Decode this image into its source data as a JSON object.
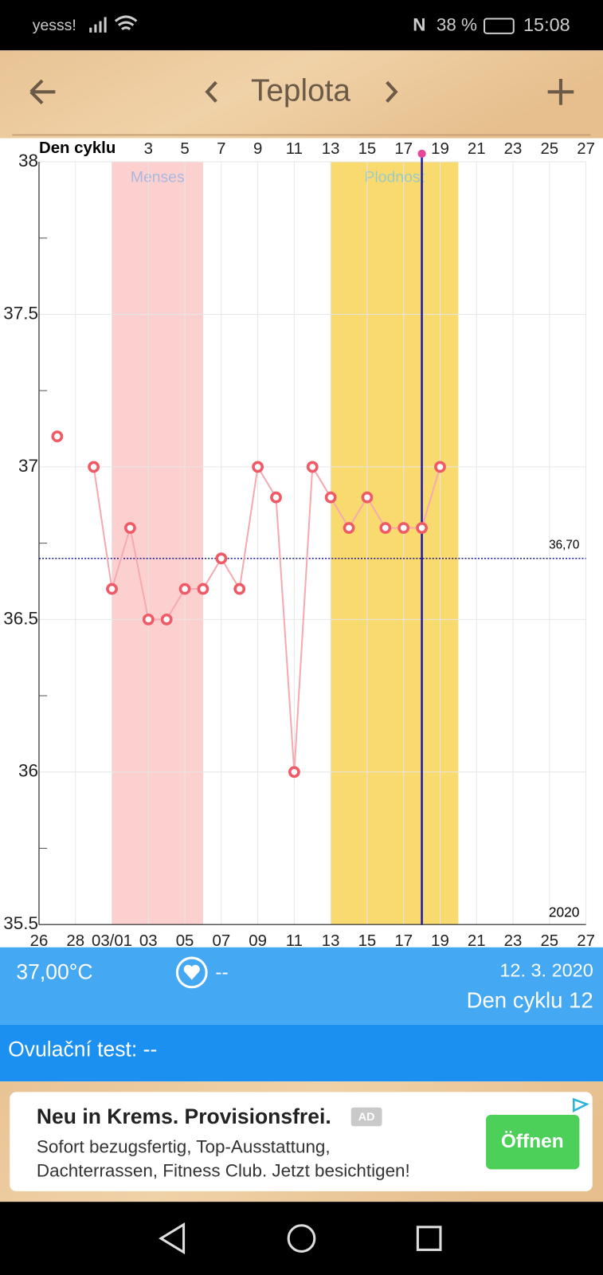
{
  "status_bar": {
    "carrier": "yesss!",
    "battery": "38 %",
    "time": "15:08"
  },
  "header": {
    "title": "Teplota"
  },
  "chart_data": {
    "type": "line",
    "top_axis_label": "Den cyklu",
    "categories": [
      "26",
      null,
      "28",
      null,
      "03/01",
      null,
      "03",
      null,
      "05",
      null,
      "07",
      null,
      "09",
      null,
      "11",
      null,
      "13",
      null,
      "15",
      null,
      "17",
      null,
      "19",
      null,
      "21",
      null,
      "23",
      null,
      "25",
      null,
      "27"
    ],
    "top_categories": [
      null,
      null,
      null,
      null,
      null,
      null,
      "3",
      null,
      "5",
      null,
      "7",
      null,
      "9",
      null,
      "11",
      null,
      "13",
      null,
      "15",
      null,
      "17",
      null,
      "19",
      null,
      "21",
      null,
      "23",
      null,
      "25",
      null,
      "27"
    ],
    "values": [
      null,
      37.1,
      null,
      37.0,
      36.6,
      36.8,
      36.5,
      36.5,
      36.6,
      36.6,
      36.7,
      36.6,
      37.0,
      36.9,
      36.0,
      37.0,
      36.9,
      36.8,
      36.9,
      36.8,
      36.8,
      36.8,
      37.0,
      null,
      null,
      null,
      null,
      null,
      null,
      null,
      null
    ],
    "color": "#ef5a66",
    "line_color": "#f6aab0",
    "ylim": [
      35.5,
      38
    ],
    "yticks": [
      35.5,
      36,
      36.5,
      37,
      37.5,
      38
    ],
    "minor_yticks": [
      35.75,
      36.25,
      36.75,
      37.25,
      37.75
    ],
    "grid": true,
    "reference_line": {
      "value": 36.7,
      "label": "36,70",
      "color": "#1a1a8c"
    },
    "year_label": "2020",
    "bands": [
      {
        "label": "Menses",
        "start": 4,
        "end": 9,
        "color": "#fdd0d0",
        "text_color": "#a9b8e0"
      },
      {
        "label": "Plodnost",
        "start": 16,
        "end": 23,
        "color": "#f9da6f",
        "text_color": "#9fc9c4"
      }
    ],
    "marker_line": {
      "index": 21,
      "color": "#1a1ab0"
    }
  },
  "info": {
    "temperature": "37,00°C",
    "symbol_value": "--",
    "date": "12. 3. 2020",
    "cycle_day": "Den cyklu 12"
  },
  "ovulation": {
    "text": "Ovulační test: --"
  },
  "ad": {
    "title": "Neu in Krems. Provisionsfrei.",
    "badge": "AD",
    "line1": "Sofort bezugsfertig, Top-Ausstattung,",
    "line2": "Dachterrassen, Fitness Club. Jetzt besichtigen!",
    "button": "Öffnen"
  }
}
